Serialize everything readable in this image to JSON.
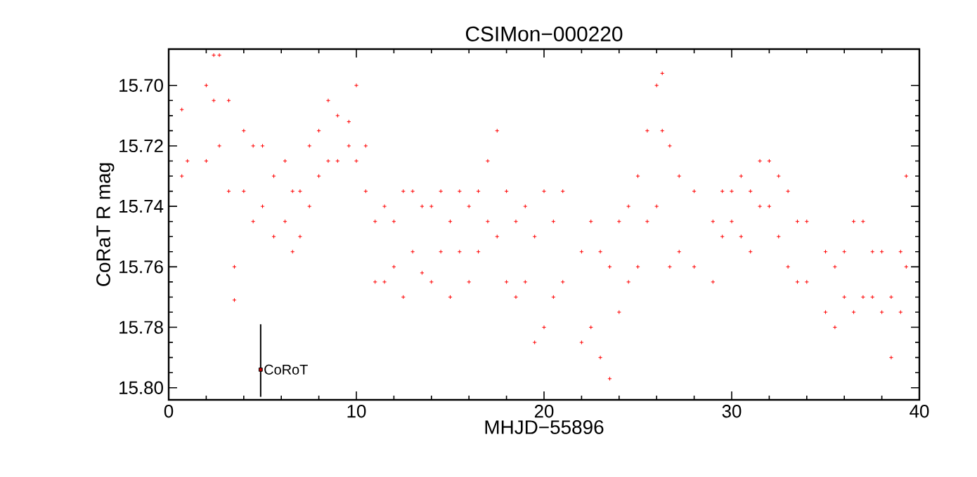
{
  "chart_data": {
    "type": "scatter",
    "title": "CSIMon−000220",
    "xlabel": "MHJD−55896",
    "ylabel": "CoRaT R mag",
    "xlim": [
      0,
      40
    ],
    "xticks": [
      0,
      10,
      20,
      30,
      40
    ],
    "ylim": [
      15.804,
      15.688
    ],
    "yticks": [
      {
        "value": 15.7,
        "label": "15.70"
      },
      {
        "value": 15.72,
        "label": "15.72"
      },
      {
        "value": 15.74,
        "label": "15.74"
      },
      {
        "value": 15.76,
        "label": "15.76"
      },
      {
        "value": 15.78,
        "label": "15.78"
      },
      {
        "value": 15.8,
        "label": "15.80"
      }
    ],
    "marker": "cross",
    "series": [
      {
        "color": "#ff0000",
        "x": [
          0.7,
          0.7,
          1.0,
          2.0,
          2.0,
          2.4,
          2.4,
          2.7,
          2.7,
          3.2,
          3.2,
          3.5,
          3.5,
          4.0,
          4.0,
          4.5,
          4.5,
          5.0,
          5.0,
          5.6,
          5.6,
          6.2,
          6.2,
          6.6,
          6.6,
          7.0,
          7.0,
          7.5,
          7.5,
          8.0,
          8.0,
          8.5,
          8.5,
          9.0,
          9.0,
          9.6,
          9.6,
          10.0,
          10.0,
          10.5,
          10.5,
          11.0,
          11.0,
          11.5,
          11.5,
          12.0,
          12.0,
          12.5,
          12.5,
          13.0,
          13.0,
          13.5,
          13.5,
          14.0,
          14.0,
          14.5,
          14.5,
          15.0,
          15.0,
          15.5,
          15.5,
          16.0,
          16.0,
          16.5,
          16.5,
          17.0,
          17.0,
          17.5,
          17.5,
          18.0,
          18.0,
          18.5,
          18.5,
          19.0,
          19.0,
          19.5,
          19.5,
          20.0,
          20.0,
          20.5,
          20.5,
          21.0,
          21.0,
          22.0,
          22.0,
          22.5,
          22.5,
          23.0,
          23.0,
          23.5,
          23.5,
          24.0,
          24.0,
          24.5,
          24.5,
          25.0,
          25.0,
          25.5,
          25.5,
          26.0,
          26.0,
          26.3,
          26.3,
          26.7,
          26.7,
          27.2,
          27.2,
          28.0,
          28.0,
          29.0,
          29.0,
          29.5,
          29.5,
          30.0,
          30.0,
          30.5,
          30.5,
          31.0,
          31.0,
          31.5,
          31.5,
          32.0,
          32.0,
          32.5,
          32.5,
          33.0,
          33.0,
          33.5,
          33.5,
          34.0,
          34.0,
          35.0,
          35.0,
          35.5,
          35.5,
          36.0,
          36.0,
          36.5,
          36.5,
          37.0,
          37.0,
          37.5,
          37.5,
          38.0,
          38.0,
          38.5,
          38.5,
          39.0,
          39.0,
          39.3,
          39.3
        ],
        "values": [
          15.708,
          15.73,
          15.725,
          15.7,
          15.725,
          15.69,
          15.705,
          15.69,
          15.72,
          15.705,
          15.735,
          15.76,
          15.771,
          15.715,
          15.735,
          15.72,
          15.745,
          15.72,
          15.74,
          15.73,
          15.75,
          15.725,
          15.745,
          15.735,
          15.755,
          15.735,
          15.75,
          15.72,
          15.74,
          15.715,
          15.73,
          15.705,
          15.725,
          15.71,
          15.725,
          15.712,
          15.72,
          15.7,
          15.725,
          15.72,
          15.735,
          15.745,
          15.765,
          15.74,
          15.765,
          15.745,
          15.76,
          15.735,
          15.77,
          15.735,
          15.755,
          15.74,
          15.762,
          15.74,
          15.765,
          15.735,
          15.755,
          15.745,
          15.77,
          15.735,
          15.755,
          15.74,
          15.765,
          15.735,
          15.755,
          15.725,
          15.745,
          15.715,
          15.75,
          15.735,
          15.765,
          15.745,
          15.77,
          15.74,
          15.765,
          15.75,
          15.785,
          15.735,
          15.78,
          15.745,
          15.77,
          15.735,
          15.765,
          15.755,
          15.785,
          15.745,
          15.78,
          15.755,
          15.79,
          15.76,
          15.797,
          15.745,
          15.775,
          15.74,
          15.765,
          15.73,
          15.76,
          15.715,
          15.745,
          15.7,
          15.74,
          15.696,
          15.715,
          15.72,
          15.76,
          15.73,
          15.755,
          15.735,
          15.76,
          15.745,
          15.765,
          15.735,
          15.75,
          15.735,
          15.745,
          15.73,
          15.75,
          15.735,
          15.755,
          15.725,
          15.74,
          15.725,
          15.74,
          15.73,
          15.75,
          15.735,
          15.76,
          15.745,
          15.765,
          15.745,
          15.765,
          15.755,
          15.775,
          15.76,
          15.78,
          15.755,
          15.77,
          15.745,
          15.775,
          15.745,
          15.77,
          15.755,
          15.77,
          15.755,
          15.775,
          15.77,
          15.79,
          15.755,
          15.775,
          15.73,
          15.76
        ]
      },
      {
        "name": "CoRoT",
        "color": "#000000",
        "marker": "square",
        "x": [
          4.9
        ],
        "values": [
          15.794
        ],
        "errors": [
          [
            15.779,
            15.803
          ]
        ]
      }
    ]
  }
}
